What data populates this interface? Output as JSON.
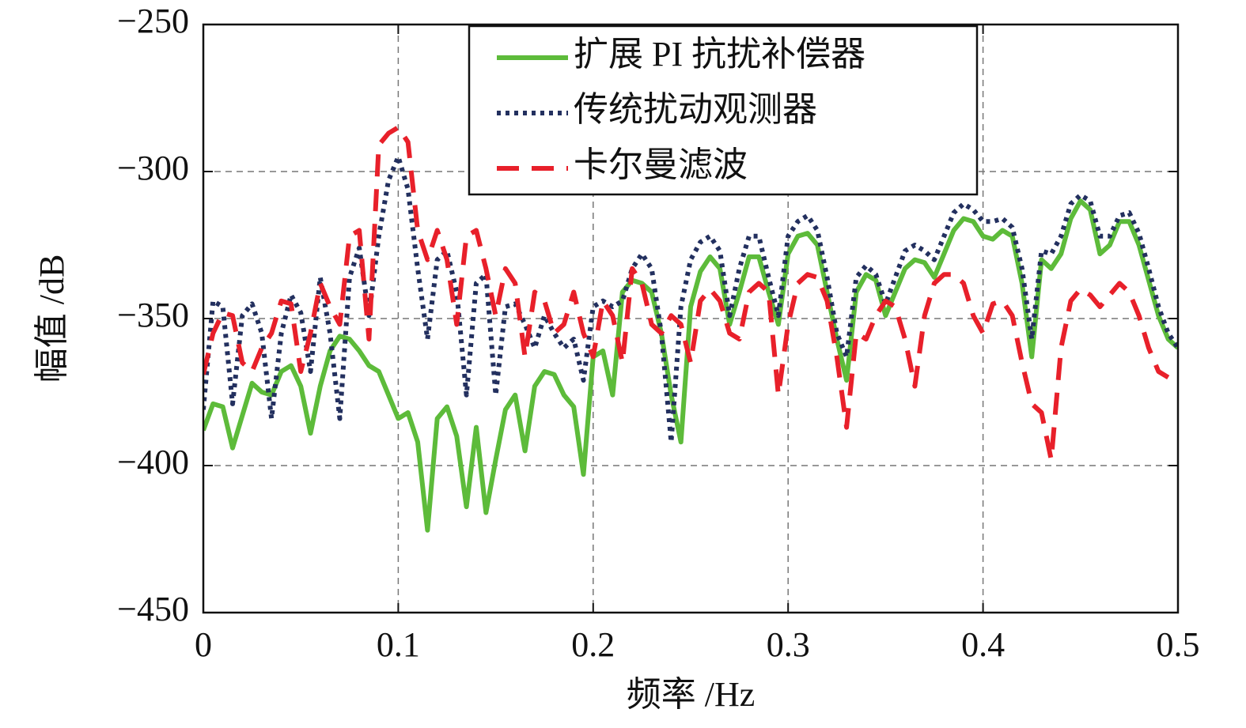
{
  "chart_data": {
    "type": "line",
    "xlabel": "频率 /Hz",
    "ylabel": "幅值 /dB",
    "x": [
      0,
      0.005,
      0.01,
      0.015,
      0.02,
      0.025,
      0.03,
      0.035,
      0.04,
      0.045,
      0.05,
      0.055,
      0.06,
      0.065,
      0.07,
      0.075,
      0.08,
      0.085,
      0.09,
      0.095,
      0.1,
      0.105,
      0.11,
      0.115,
      0.12,
      0.125,
      0.13,
      0.135,
      0.14,
      0.145,
      0.15,
      0.155,
      0.16,
      0.165,
      0.17,
      0.175,
      0.18,
      0.185,
      0.19,
      0.195,
      0.2,
      0.205,
      0.21,
      0.215,
      0.22,
      0.225,
      0.23,
      0.235,
      0.24,
      0.245,
      0.25,
      0.255,
      0.26,
      0.265,
      0.27,
      0.275,
      0.28,
      0.285,
      0.29,
      0.295,
      0.3,
      0.305,
      0.31,
      0.315,
      0.32,
      0.325,
      0.33,
      0.335,
      0.34,
      0.345,
      0.35,
      0.355,
      0.36,
      0.365,
      0.37,
      0.375,
      0.38,
      0.385,
      0.39,
      0.395,
      0.4,
      0.405,
      0.41,
      0.415,
      0.42,
      0.425,
      0.43,
      0.435,
      0.44,
      0.445,
      0.45,
      0.455,
      0.46,
      0.465,
      0.47,
      0.475,
      0.48,
      0.485,
      0.49,
      0.495,
      0.5
    ],
    "series": [
      {
        "name": "扩展 PI 抗扰补偿器",
        "color": "#5dbb3a",
        "style": "solid",
        "values": [
          -388,
          -379,
          -380,
          -394,
          -383,
          -372,
          -375,
          -376,
          -368,
          -366,
          -373,
          -389,
          -373,
          -361,
          -356,
          -357,
          -361,
          -366,
          -368,
          -376,
          -384,
          -382,
          -392,
          -422,
          -384,
          -380,
          -390,
          -414,
          -387,
          -416,
          -398,
          -381,
          -376,
          -395,
          -373,
          -368,
          -369,
          -376,
          -380,
          -403,
          -363,
          -361,
          -376,
          -341,
          -337,
          -338,
          -341,
          -355,
          -376,
          -392,
          -346,
          -334,
          -329,
          -333,
          -352,
          -341,
          -329,
          -329,
          -341,
          -352,
          -328,
          -322,
          -321,
          -325,
          -341,
          -357,
          -371,
          -341,
          -335,
          -337,
          -349,
          -341,
          -333,
          -330,
          -331,
          -336,
          -328,
          -320,
          -316,
          -317,
          -322,
          -323,
          -320,
          -322,
          -338,
          -363,
          -330,
          -333,
          -328,
          -316,
          -310,
          -313,
          -328,
          -325,
          -317,
          -317,
          -325,
          -337,
          -349,
          -357,
          -360
        ]
      },
      {
        "name": "传统扰动观测器",
        "color": "#23305f",
        "style": "dotted",
        "values": [
          -381,
          -344,
          -346,
          -379,
          -349,
          -345,
          -355,
          -384,
          -355,
          -342,
          -348,
          -368,
          -336,
          -355,
          -384,
          -336,
          -326,
          -349,
          -322,
          -303,
          -295,
          -306,
          -333,
          -357,
          -330,
          -327,
          -341,
          -376,
          -338,
          -335,
          -376,
          -346,
          -345,
          -352,
          -360,
          -349,
          -355,
          -360,
          -357,
          -371,
          -346,
          -344,
          -346,
          -344,
          -333,
          -328,
          -333,
          -355,
          -392,
          -346,
          -330,
          -324,
          -322,
          -327,
          -349,
          -333,
          -322,
          -322,
          -336,
          -349,
          -322,
          -317,
          -315,
          -320,
          -336,
          -355,
          -363,
          -336,
          -332,
          -335,
          -345,
          -336,
          -327,
          -325,
          -327,
          -330,
          -322,
          -314,
          -311,
          -313,
          -317,
          -317,
          -316,
          -319,
          -333,
          -357,
          -327,
          -328,
          -322,
          -311,
          -308,
          -310,
          -322,
          -322,
          -315,
          -314,
          -321,
          -333,
          -346,
          -355,
          -360
        ]
      },
      {
        "name": "卡尔曼滤波",
        "color": "#e8202a",
        "style": "dashed",
        "values": [
          -369,
          -355,
          -348,
          -349,
          -365,
          -368,
          -360,
          -355,
          -344,
          -345,
          -368,
          -355,
          -338,
          -346,
          -352,
          -322,
          -320,
          -357,
          -291,
          -287,
          -285,
          -290,
          -320,
          -330,
          -320,
          -330,
          -352,
          -322,
          -320,
          -333,
          -349,
          -333,
          -338,
          -363,
          -341,
          -344,
          -355,
          -352,
          -341,
          -355,
          -363,
          -344,
          -349,
          -365,
          -333,
          -338,
          -352,
          -355,
          -349,
          -352,
          -365,
          -344,
          -340,
          -344,
          -355,
          -357,
          -341,
          -338,
          -341,
          -376,
          -352,
          -338,
          -335,
          -336,
          -344,
          -363,
          -387,
          -355,
          -357,
          -349,
          -344,
          -346,
          -357,
          -373,
          -349,
          -338,
          -335,
          -335,
          -338,
          -349,
          -355,
          -345,
          -344,
          -349,
          -365,
          -379,
          -382,
          -398,
          -360,
          -344,
          -340,
          -342,
          -346,
          -342,
          -338,
          -341,
          -349,
          -360,
          -368,
          -370,
          null
        ]
      }
    ],
    "xlim": [
      0,
      0.5
    ],
    "ylim": [
      -450,
      -250
    ],
    "xticks": [
      0,
      0.1,
      0.2,
      0.3,
      0.4,
      0.5
    ],
    "yticks": [
      -450,
      -400,
      -350,
      -300,
      -250
    ],
    "grid": true,
    "legend": "upper center"
  }
}
